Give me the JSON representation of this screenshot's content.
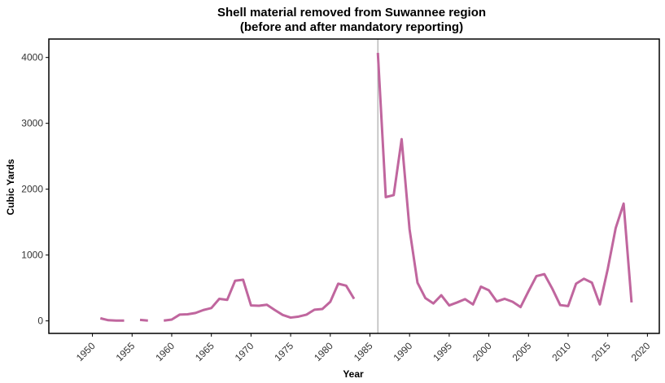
{
  "chart_data": {
    "type": "line",
    "title": "Shell material removed from Suwannee region",
    "subtitle": "(before and after mandatory reporting)",
    "xlabel": "Year",
    "ylabel": "Cubic Yards",
    "xlim": [
      1944.5,
      2021.5
    ],
    "ylim": [
      -190,
      4280
    ],
    "xticks": [
      1950,
      1955,
      1960,
      1965,
      1970,
      1975,
      1980,
      1985,
      1990,
      1995,
      2000,
      2005,
      2010,
      2015,
      2020
    ],
    "yticks": [
      0,
      1000,
      2000,
      3000,
      4000
    ],
    "grid": false,
    "reference_line_x": 1986,
    "colors": {
      "line": "#c0669e",
      "reference_line": "#aaaaaa",
      "axis": "#000000"
    },
    "series": [
      {
        "segments": [
          [
            [
              1951,
              40
            ],
            [
              1952,
              10
            ],
            [
              1953,
              5
            ],
            [
              1954,
              5
            ]
          ],
          [
            [
              1956,
              15
            ],
            [
              1957,
              5
            ]
          ],
          [
            [
              1959,
              5
            ],
            [
              1960,
              20
            ],
            [
              1961,
              95
            ],
            [
              1962,
              100
            ],
            [
              1963,
              120
            ],
            [
              1964,
              165
            ],
            [
              1965,
              195
            ],
            [
              1966,
              335
            ],
            [
              1967,
              320
            ],
            [
              1968,
              610
            ],
            [
              1969,
              625
            ],
            [
              1970,
              235
            ],
            [
              1971,
              230
            ],
            [
              1972,
              245
            ],
            [
              1973,
              165
            ],
            [
              1974,
              90
            ],
            [
              1975,
              50
            ],
            [
              1976,
              65
            ],
            [
              1977,
              95
            ],
            [
              1978,
              170
            ],
            [
              1979,
              180
            ],
            [
              1980,
              290
            ],
            [
              1981,
              565
            ],
            [
              1982,
              535
            ],
            [
              1983,
              335
            ]
          ],
          [
            [
              1986,
              4070
            ],
            [
              1987,
              1880
            ],
            [
              1988,
              1910
            ],
            [
              1989,
              2760
            ],
            [
              1990,
              1390
            ],
            [
              1991,
              580
            ],
            [
              1992,
              345
            ],
            [
              1993,
              265
            ],
            [
              1994,
              390
            ],
            [
              1995,
              235
            ],
            [
              1996,
              280
            ],
            [
              1997,
              330
            ],
            [
              1998,
              250
            ],
            [
              1999,
              520
            ],
            [
              2000,
              465
            ],
            [
              2001,
              295
            ],
            [
              2002,
              335
            ],
            [
              2003,
              290
            ],
            [
              2004,
              210
            ],
            [
              2005,
              450
            ],
            [
              2006,
              680
            ],
            [
              2007,
              710
            ],
            [
              2008,
              490
            ],
            [
              2009,
              240
            ],
            [
              2010,
              225
            ],
            [
              2011,
              565
            ],
            [
              2012,
              640
            ],
            [
              2013,
              580
            ],
            [
              2014,
              250
            ],
            [
              2015,
              790
            ],
            [
              2016,
              1410
            ],
            [
              2017,
              1780
            ],
            [
              2018,
              280
            ]
          ]
        ]
      }
    ]
  }
}
